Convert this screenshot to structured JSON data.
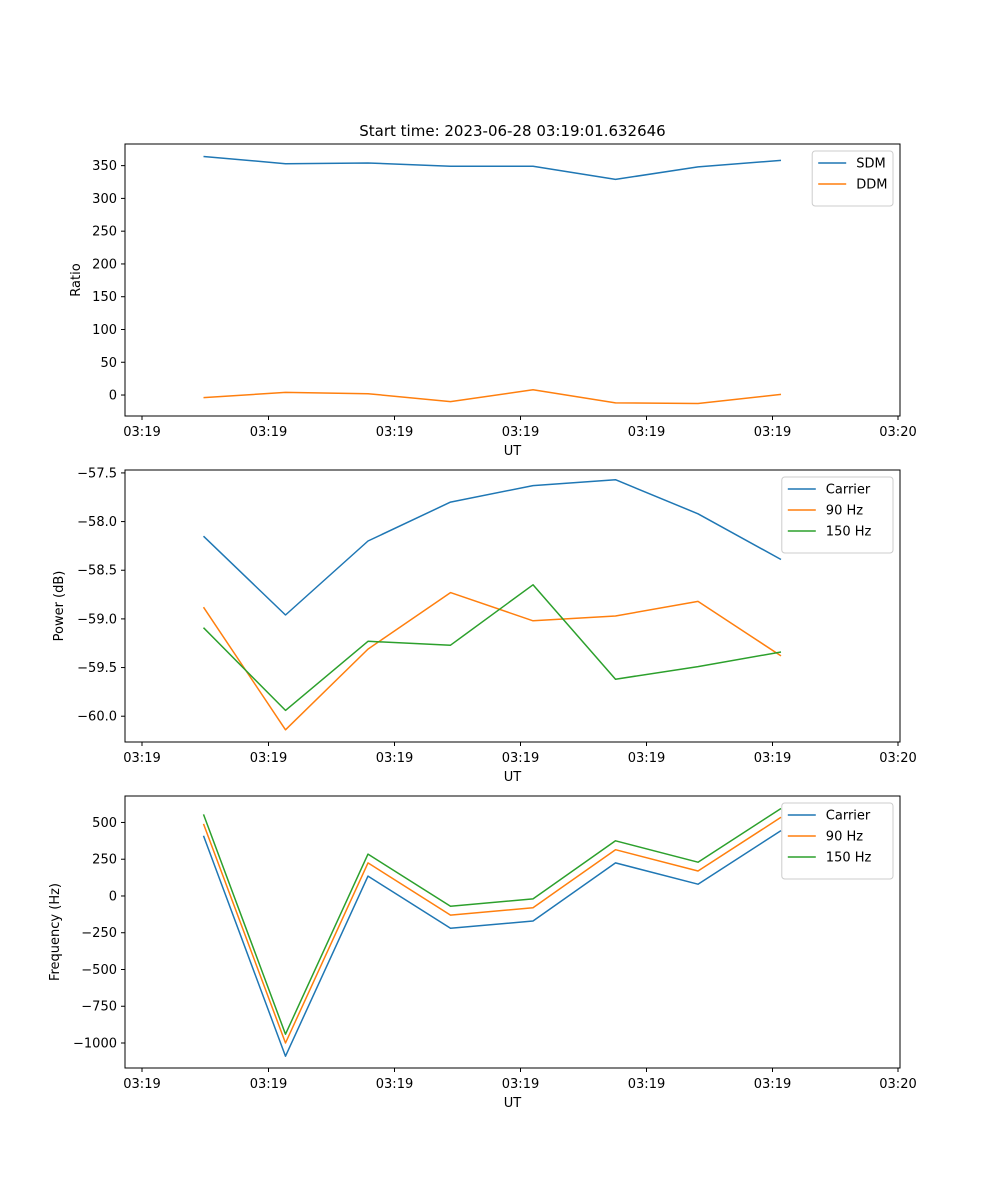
{
  "figure": {
    "title": "Start time: 2023-06-28 03:19:01.632646"
  },
  "chart_data": [
    {
      "type": "line",
      "title": "Start time: 2023-06-28 03:19:01.632646",
      "xlabel": "UT",
      "ylabel": "Ratio",
      "x_tick_labels": [
        "03:19",
        "03:19",
        "03:19",
        "03:19",
        "03:19",
        "03:19",
        "03:20"
      ],
      "y_ticks": [
        0,
        50,
        100,
        150,
        200,
        250,
        300,
        350
      ],
      "ylim": [
        -32,
        383
      ],
      "legend": "upper-right",
      "series": [
        {
          "name": "SDM",
          "color": "#1f77b4",
          "values": [
            364,
            353,
            354,
            349,
            349,
            329,
            348,
            358
          ]
        },
        {
          "name": "DDM",
          "color": "#ff7f0e",
          "values": [
            -4,
            4,
            2,
            -10,
            8,
            -12,
            -13,
            1
          ]
        }
      ]
    },
    {
      "type": "line",
      "xlabel": "UT",
      "ylabel": "Power (dB)",
      "x_tick_labels": [
        "03:19",
        "03:19",
        "03:19",
        "03:19",
        "03:19",
        "03:19",
        "03:20"
      ],
      "y_ticks": [
        -60.0,
        -59.5,
        -59.0,
        -58.5,
        -58.0,
        -57.5
      ],
      "y_tick_labels": [
        "−60.0",
        "−59.5",
        "−59.0",
        "−58.5",
        "−58.0",
        "−57.5"
      ],
      "ylim": [
        -60.265,
        -57.47
      ],
      "legend": "upper-right",
      "series": [
        {
          "name": "Carrier",
          "color": "#1f77b4",
          "values": [
            -58.15,
            -58.96,
            -58.2,
            -57.8,
            -57.63,
            -57.57,
            -57.92,
            -58.39
          ]
        },
        {
          "name": "90 Hz",
          "color": "#ff7f0e",
          "values": [
            -58.88,
            -60.14,
            -59.31,
            -58.73,
            -59.02,
            -58.97,
            -58.82,
            -59.38
          ]
        },
        {
          "name": "150 Hz",
          "color": "#2ca02c",
          "values": [
            -59.09,
            -59.94,
            -59.23,
            -59.27,
            -58.65,
            -59.62,
            -59.49,
            -59.34
          ]
        }
      ]
    },
    {
      "type": "line",
      "xlabel": "UT",
      "ylabel": "Frequency (Hz)",
      "x_tick_labels": [
        "03:19",
        "03:19",
        "03:19",
        "03:19",
        "03:19",
        "03:19",
        "03:20"
      ],
      "y_ticks": [
        -1000,
        -750,
        -500,
        -250,
        0,
        250,
        500
      ],
      "y_tick_labels": [
        "−1000",
        "−750",
        "−500",
        "−250",
        "0",
        "250",
        "500"
      ],
      "ylim": [
        -1170,
        680
      ],
      "legend": "upper-right",
      "series": [
        {
          "name": "Carrier",
          "color": "#1f77b4",
          "values": [
            410,
            -1090,
            135,
            -220,
            -170,
            225,
            80,
            445
          ]
        },
        {
          "name": "90 Hz",
          "color": "#ff7f0e",
          "values": [
            490,
            -1000,
            225,
            -130,
            -80,
            315,
            170,
            535
          ]
        },
        {
          "name": "150 Hz",
          "color": "#2ca02c",
          "values": [
            555,
            -940,
            285,
            -70,
            -20,
            375,
            230,
            595
          ]
        }
      ]
    }
  ]
}
